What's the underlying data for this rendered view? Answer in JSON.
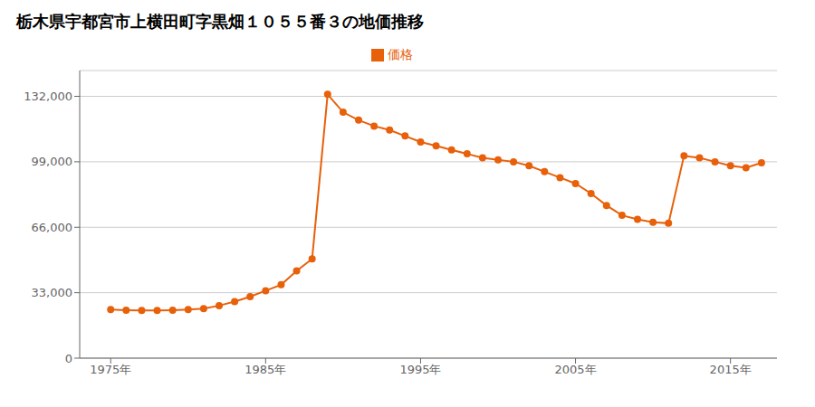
{
  "chart_data": {
    "type": "line",
    "title": "栃木県宇都宮市上横田町字黒畑１０５５番３の地価推移",
    "x": [
      1975,
      1976,
      1977,
      1978,
      1979,
      1980,
      1981,
      1982,
      1983,
      1984,
      1985,
      1986,
      1987,
      1988,
      1989,
      1990,
      1991,
      1992,
      1993,
      1994,
      1995,
      1996,
      1997,
      1998,
      1999,
      2000,
      2001,
      2002,
      2003,
      2004,
      2005,
      2006,
      2007,
      2008,
      2009,
      2010,
      2011,
      2012,
      2013,
      2014,
      2015,
      2016,
      2017
    ],
    "series": [
      {
        "name": "価格",
        "color": "#e8600a",
        "marker": "circle",
        "values": [
          24500,
          24200,
          24000,
          24000,
          24200,
          24500,
          25000,
          26500,
          28500,
          31000,
          34000,
          37000,
          44000,
          50000,
          133000,
          124000,
          120000,
          117000,
          115000,
          112000,
          109000,
          107000,
          105000,
          103000,
          101000,
          100000,
          99000,
          97000,
          94000,
          91000,
          88000,
          83000,
          77000,
          72000,
          70000,
          68500,
          68000,
          102000,
          101000,
          99000,
          97000,
          96000,
          98500
        ]
      }
    ],
    "xlim": [
      1973,
      2018
    ],
    "xticks": [
      {
        "value": 1975,
        "label": "1975年"
      },
      {
        "value": 1985,
        "label": "1985年"
      },
      {
        "value": 1995,
        "label": "1995年"
      },
      {
        "value": 2005,
        "label": "2005年"
      },
      {
        "value": 2015,
        "label": "2015年"
      }
    ],
    "ylim": [
      0,
      145000
    ],
    "yticks": [
      0,
      {
        "value": 33000,
        "label": "33,000"
      },
      {
        "value": 66000,
        "label": "66,000"
      },
      {
        "value": 99000,
        "label": "99,000"
      },
      {
        "value": 132000,
        "label": "132,000"
      }
    ],
    "grid": true,
    "legend": "top"
  }
}
